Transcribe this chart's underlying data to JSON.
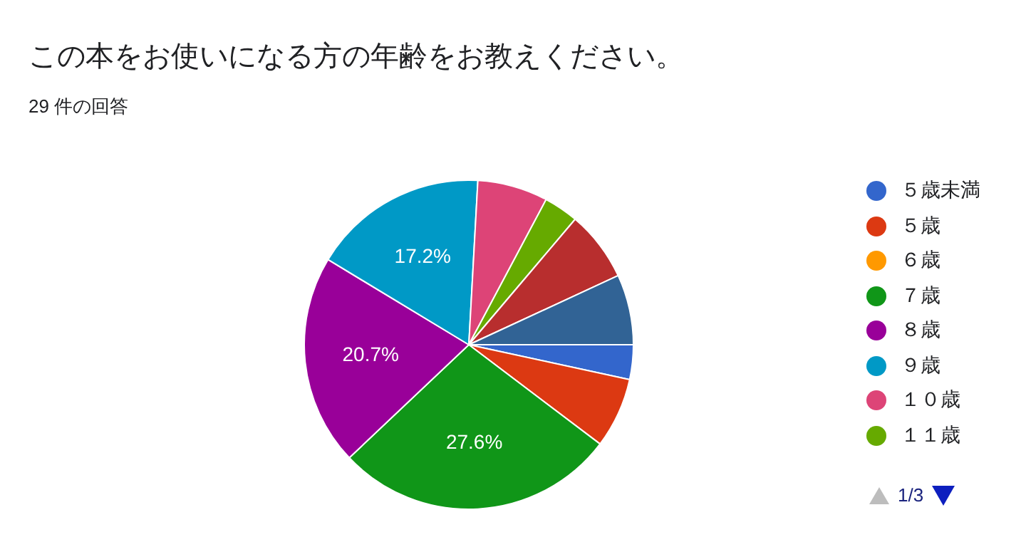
{
  "chart_data": {
    "type": "pie",
    "title": "この本をお使いになる方の年齢をお教えください。",
    "subtitle": "29 件の回答",
    "categories": [
      "５歳未満",
      "５歳",
      "６歳",
      "７歳",
      "８歳",
      "９歳",
      "１０歳",
      "１１歳",
      null,
      null
    ],
    "values": [
      3.4,
      6.9,
      0,
      27.6,
      20.7,
      17.2,
      6.9,
      3.4,
      6.9,
      6.9
    ],
    "colors": [
      "#3366cc",
      "#dc3912",
      "#ff9900",
      "#109618",
      "#990099",
      "#0099c6",
      "#dd4477",
      "#66aa00",
      "#b82e2e",
      "#316395"
    ],
    "value_labels": [
      null,
      null,
      null,
      "27.6%",
      "20.7%",
      "17.2%",
      null,
      null,
      null,
      null
    ],
    "legend": "right",
    "annotations": [
      "1/3"
    ]
  }
}
